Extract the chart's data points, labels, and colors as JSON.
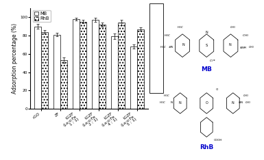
{
  "MB_values": [
    90,
    81,
    98,
    97,
    79,
    68
  ],
  "RhB_values": [
    84,
    53,
    95,
    92,
    94,
    87
  ],
  "MB_errors": [
    2.5,
    2,
    1.5,
    2,
    3,
    2
  ],
  "RhB_errors": [
    2,
    3,
    2,
    2,
    3,
    2
  ],
  "xlabels": [
    "rGO",
    "ZF",
    "tGZF\n(La:o:Fe\n1 : 1)",
    "tGZF\n(La:o:Fe\n2 : 1)",
    "tGZF\n(La:o:Fe\n4 : 1)",
    "tGZF\n(La:o:Fe\n5 : 1)"
  ],
  "ylabel": "Adsorption percentage (%)",
  "ylim": [
    0,
    110
  ],
  "yticks": [
    0,
    20,
    40,
    60,
    80,
    100
  ],
  "bar_width": 0.35,
  "fig_width": 3.85,
  "fig_height": 2.34,
  "dpi": 100,
  "tick_fontsize": 4.2,
  "ylabel_fontsize": 5.5,
  "legend_fontsize": 4.8,
  "label_color_blue": "#0000cc"
}
